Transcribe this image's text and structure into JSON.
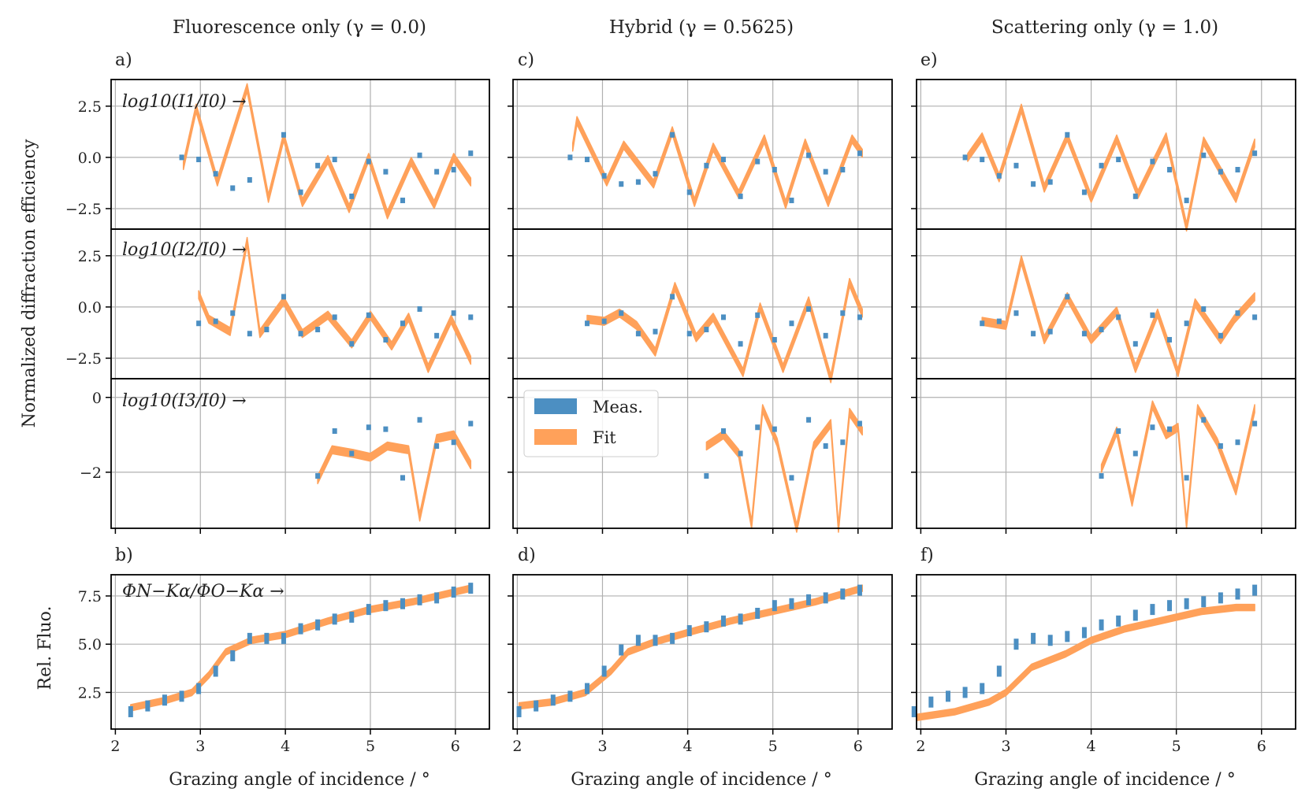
{
  "colors": {
    "meas": "#4c8fc2",
    "fit": "#ffa15a",
    "grid": "#b0b0b0",
    "axis": "#000000"
  },
  "column_titles": [
    "Fluorescence only (γ = 0.0)",
    "Hybrid (γ = 0.5625)",
    "Scattering only (γ = 1.0)"
  ],
  "panel_letters": [
    "a)",
    "b)",
    "c)",
    "d)",
    "e)",
    "f)"
  ],
  "y_label_top": "Normalized diffraction efficiency",
  "y_label_bottom": "Rel. Fluo.",
  "x_label": "Grazing angle of incidence / °",
  "row_annotations": [
    "log10(I1/I0) →",
    "log10(I2/I0) →",
    "log10(I3/I0) →",
    "ΦN−Kα/ΦO−Kα →"
  ],
  "legend": {
    "meas": "Meas.",
    "fit": "Fit"
  },
  "chart_data": {
    "type": "scatter",
    "xlim": [
      1.95,
      6.4
    ],
    "xticks": [
      2,
      3,
      4,
      5,
      6
    ],
    "rows": [
      {
        "ylim": [
          -3.5,
          3.8
        ],
        "yticks": [
          2.5,
          0.0,
          -2.5
        ],
        "yticklabels": [
          "2.5",
          "0.0",
          "−2.5"
        ]
      },
      {
        "ylim": [
          -3.5,
          3.8
        ],
        "yticks": [
          2.5,
          0.0,
          -2.5
        ],
        "yticklabels": [
          "2.5",
          "0.0",
          "−2.5"
        ]
      },
      {
        "ylim": [
          -3.5,
          0.5
        ],
        "yticks": [
          0,
          -2
        ],
        "yticklabels": [
          "0",
          "−2"
        ]
      },
      {
        "ylim": [
          0.6,
          8.6
        ],
        "yticks": [
          2.5,
          5.0,
          7.5
        ],
        "yticklabels": [
          "2.5",
          "5.0",
          "7.5"
        ]
      }
    ],
    "columns": [
      {
        "name": "Fluorescence only",
        "gamma": 0.0,
        "rows": [
          {
            "fit_x": [
              2.8,
              2.95,
              3.2,
              3.55,
              3.8,
              3.98,
              4.2,
              4.5,
              4.75,
              4.98,
              5.2,
              5.48,
              5.75,
              5.98,
              6.18
            ],
            "fit_y": [
              -0.4,
              2.4,
              -1.2,
              3.4,
              -2.0,
              1.0,
              -2.2,
              -0.1,
              -2.5,
              0.0,
              -2.8,
              -0.2,
              -2.3,
              0.0,
              -1.2
            ],
            "meas_x": [
              2.78,
              2.98,
              3.18,
              3.38,
              3.58,
              3.98,
              4.18,
              4.38,
              4.58,
              4.78,
              4.98,
              5.18,
              5.38,
              5.58,
              5.78,
              5.98,
              6.18
            ],
            "meas_y": [
              0.0,
              -0.1,
              -0.8,
              -1.5,
              -1.1,
              1.1,
              -1.7,
              -0.4,
              -0.1,
              -1.9,
              -0.2,
              -0.7,
              -2.1,
              0.1,
              -0.7,
              -0.6,
              0.2
            ]
          },
          {
            "fit_x": [
              2.98,
              3.1,
              3.35,
              3.55,
              3.7,
              3.98,
              4.2,
              4.5,
              4.78,
              5.0,
              5.25,
              5.45,
              5.68,
              5.95,
              6.18
            ],
            "fit_y": [
              0.6,
              -0.6,
              -1.2,
              3.2,
              -1.3,
              0.3,
              -1.3,
              -0.4,
              -1.8,
              -0.4,
              -1.9,
              -0.5,
              -3.0,
              -0.6,
              -2.6
            ],
            "meas_x": [
              2.98,
              3.18,
              3.38,
              3.58,
              3.78,
              3.98,
              4.18,
              4.38,
              4.58,
              4.78,
              4.98,
              5.18,
              5.38,
              5.58,
              5.78,
              5.98,
              6.18
            ],
            "meas_y": [
              -0.8,
              -0.7,
              -0.3,
              -1.3,
              -1.1,
              0.5,
              -1.3,
              -1.1,
              -0.5,
              -1.8,
              -0.4,
              -1.6,
              -0.8,
              -0.1,
              -1.4,
              -0.3,
              -0.5
            ]
          },
          {
            "fit_x": [
              4.38,
              4.55,
              4.8,
              5.0,
              5.2,
              5.45,
              5.58,
              5.78,
              5.98,
              6.18
            ],
            "fit_y": [
              -2.2,
              -1.4,
              -1.5,
              -1.6,
              -1.3,
              -1.4,
              -3.2,
              -1.1,
              -1.0,
              -1.8
            ],
            "meas_x": [
              4.38,
              4.58,
              4.78,
              4.98,
              5.18,
              5.38,
              5.58,
              5.78,
              5.98,
              6.18
            ],
            "meas_y": [
              -2.1,
              -0.9,
              -1.5,
              -0.8,
              -0.85,
              -2.15,
              -0.6,
              -1.3,
              -1.2,
              -0.7
            ]
          },
          {
            "fit_x": [
              2.18,
              2.6,
              2.9,
              3.1,
              3.3,
              3.6,
              4.0,
              4.5,
              5.0,
              5.5,
              6.18
            ],
            "fit_y": [
              1.7,
              2.1,
              2.5,
              3.4,
              4.6,
              5.2,
              5.5,
              6.2,
              6.8,
              7.2,
              7.9
            ],
            "meas_x": [
              2.18,
              2.38,
              2.58,
              2.78,
              2.98,
              3.18,
              3.38,
              3.58,
              3.78,
              3.98,
              4.18,
              4.38,
              4.58,
              4.78,
              4.98,
              5.18,
              5.38,
              5.58,
              5.78,
              5.98,
              6.18
            ],
            "meas_y": [
              1.5,
              1.8,
              2.1,
              2.3,
              2.7,
              3.6,
              4.4,
              5.3,
              5.3,
              5.3,
              5.8,
              6.0,
              6.3,
              6.4,
              6.8,
              7.0,
              7.1,
              7.3,
              7.4,
              7.7,
              7.9
            ]
          }
        ]
      },
      {
        "name": "Hybrid",
        "gamma": 0.5625,
        "rows": [
          {
            "fit_x": [
              2.65,
              2.7,
              3.05,
              3.25,
              3.6,
              3.82,
              4.08,
              4.3,
              4.6,
              4.9,
              5.15,
              5.38,
              5.65,
              5.93,
              6.05
            ],
            "fit_y": [
              0.5,
              1.8,
              -1.2,
              0.6,
              -1.3,
              1.3,
              -2.2,
              0.5,
              -1.8,
              0.9,
              -2.3,
              0.7,
              -2.2,
              0.9,
              0.2
            ],
            "meas_x": [
              2.62,
              2.82,
              3.02,
              3.22,
              3.42,
              3.62,
              3.82,
              4.02,
              4.22,
              4.42,
              4.62,
              4.82,
              5.02,
              5.22,
              5.42,
              5.62,
              5.82,
              6.02
            ],
            "meas_y": [
              0.0,
              -0.1,
              -0.9,
              -1.3,
              -1.2,
              -0.8,
              1.1,
              -1.7,
              -0.4,
              -0.1,
              -1.9,
              -0.2,
              -0.6,
              -2.1,
              0.1,
              -0.7,
              -0.6,
              0.2
            ]
          },
          {
            "fit_x": [
              2.82,
              3.02,
              3.2,
              3.4,
              3.62,
              3.85,
              4.1,
              4.3,
              4.65,
              4.85,
              5.12,
              5.42,
              5.68,
              5.9,
              6.05
            ],
            "fit_y": [
              -0.6,
              -0.7,
              -0.3,
              -0.9,
              -2.2,
              1.0,
              -1.5,
              -0.5,
              -3.2,
              0.0,
              -3.0,
              0.3,
              -3.5,
              1.2,
              -0.3
            ],
            "meas_x": [
              2.82,
              3.02,
              3.22,
              3.42,
              3.62,
              3.82,
              4.02,
              4.22,
              4.42,
              4.62,
              4.82,
              5.02,
              5.22,
              5.42,
              5.62,
              5.82,
              6.02
            ],
            "meas_y": [
              -0.8,
              -0.7,
              -0.3,
              -1.3,
              -1.2,
              0.5,
              -1.3,
              -1.1,
              -0.5,
              -1.8,
              -0.4,
              -1.6,
              -0.8,
              -0.1,
              -1.4,
              -0.3,
              -0.5
            ]
          },
          {
            "fit_x": [
              4.22,
              4.42,
              4.6,
              4.75,
              4.88,
              5.05,
              5.28,
              5.48,
              5.68,
              5.77,
              5.9,
              6.05
            ],
            "fit_y": [
              -1.3,
              -1.0,
              -1.5,
              -3.4,
              -0.3,
              -1.2,
              -3.5,
              -1.3,
              -0.7,
              -3.5,
              -0.4,
              -0.9
            ],
            "meas_x": [
              4.22,
              4.42,
              4.62,
              4.82,
              5.02,
              5.22,
              5.42,
              5.62,
              5.82,
              6.02
            ],
            "meas_y": [
              -2.1,
              -0.9,
              -1.5,
              -0.8,
              -0.85,
              -2.15,
              -0.6,
              -1.3,
              -1.2,
              -0.7
            ]
          },
          {
            "fit_x": [
              2.02,
              2.4,
              2.8,
              3.1,
              3.3,
              3.6,
              4.0,
              4.5,
              5.0,
              5.5,
              6.05
            ],
            "fit_y": [
              1.8,
              2.0,
              2.5,
              3.6,
              4.6,
              5.1,
              5.6,
              6.2,
              6.7,
              7.2,
              7.9
            ],
            "meas_x": [
              2.02,
              2.22,
              2.42,
              2.62,
              2.82,
              3.02,
              3.22,
              3.42,
              3.62,
              3.82,
              4.02,
              4.22,
              4.42,
              4.62,
              4.82,
              5.02,
              5.22,
              5.42,
              5.62,
              5.82,
              6.02
            ],
            "meas_y": [
              1.5,
              1.8,
              2.1,
              2.3,
              2.7,
              3.6,
              4.7,
              5.2,
              5.2,
              5.3,
              5.7,
              5.9,
              6.2,
              6.3,
              6.6,
              7.0,
              7.1,
              7.3,
              7.4,
              7.6,
              7.8
            ]
          }
        ]
      },
      {
        "name": "Scattering only",
        "gamma": 1.0,
        "rows": [
          {
            "fit_x": [
              2.55,
              2.72,
              2.92,
              3.18,
              3.45,
              3.72,
              4.0,
              4.3,
              4.55,
              4.88,
              5.12,
              5.32,
              5.7,
              5.92
            ],
            "fit_y": [
              0.0,
              1.0,
              -1.0,
              2.4,
              -1.5,
              1.0,
              -2.0,
              0.9,
              -1.8,
              1.0,
              -3.4,
              0.8,
              -2.0,
              0.7
            ],
            "meas_x": [
              2.52,
              2.72,
              2.92,
              3.12,
              3.32,
              3.52,
              3.72,
              3.92,
              4.12,
              4.32,
              4.52,
              4.72,
              4.92,
              5.12,
              5.32,
              5.52,
              5.72,
              5.92
            ],
            "meas_y": [
              0.0,
              -0.1,
              -0.9,
              -0.4,
              -1.3,
              -1.2,
              1.1,
              -1.7,
              -0.4,
              -0.1,
              -1.9,
              -0.2,
              -0.6,
              -2.1,
              0.1,
              -0.7,
              -0.6,
              0.2
            ]
          },
          {
            "fit_x": [
              2.72,
              3.0,
              3.18,
              3.45,
              3.72,
              4.0,
              4.3,
              4.52,
              4.78,
              5.02,
              5.22,
              5.52,
              5.68,
              5.92
            ],
            "fit_y": [
              -0.7,
              -0.9,
              2.3,
              -1.6,
              0.5,
              -1.6,
              -0.2,
              -3.0,
              -0.3,
              -3.2,
              0.2,
              -1.6,
              -0.6,
              0.5
            ],
            "meas_x": [
              2.72,
              2.92,
              3.12,
              3.32,
              3.52,
              3.72,
              3.92,
              4.12,
              4.32,
              4.52,
              4.72,
              4.92,
              5.12,
              5.32,
              5.52,
              5.72,
              5.92
            ],
            "meas_y": [
              -0.8,
              -0.7,
              -0.3,
              -1.3,
              -1.2,
              0.5,
              -1.3,
              -1.1,
              -0.5,
              -1.8,
              -0.4,
              -1.6,
              -0.8,
              -0.1,
              -1.4,
              -0.3,
              -0.5
            ]
          },
          {
            "fit_x": [
              4.12,
              4.3,
              4.48,
              4.72,
              4.88,
              5.02,
              5.12,
              5.25,
              5.48,
              5.7,
              5.92
            ],
            "fit_y": [
              -1.9,
              -0.9,
              -2.8,
              -0.2,
              -1.0,
              -0.8,
              -3.4,
              -0.3,
              -1.2,
              -2.5,
              -0.3
            ],
            "meas_x": [
              4.12,
              4.32,
              4.52,
              4.72,
              4.92,
              5.12,
              5.32,
              5.52,
              5.72,
              5.92
            ],
            "meas_y": [
              -2.1,
              -0.9,
              -1.5,
              -0.8,
              -0.85,
              -2.15,
              -0.6,
              -1.3,
              -1.2,
              -0.7
            ]
          },
          {
            "fit_x": [
              1.95,
              2.4,
              2.8,
              3.0,
              3.3,
              3.7,
              4.0,
              4.4,
              4.9,
              5.3,
              5.7,
              5.92
            ],
            "fit_y": [
              1.2,
              1.5,
              2.0,
              2.5,
              3.8,
              4.5,
              5.2,
              5.8,
              6.3,
              6.7,
              6.9,
              6.9
            ],
            "meas_x": [
              1.92,
              2.12,
              2.32,
              2.52,
              2.72,
              2.92,
              3.12,
              3.32,
              3.52,
              3.72,
              3.92,
              4.12,
              4.32,
              4.52,
              4.72,
              4.92,
              5.12,
              5.32,
              5.52,
              5.72,
              5.92
            ],
            "meas_y": [
              1.5,
              2.0,
              2.3,
              2.5,
              2.7,
              3.6,
              5.0,
              5.3,
              5.2,
              5.4,
              5.6,
              6.0,
              6.2,
              6.5,
              6.8,
              7.0,
              7.1,
              7.2,
              7.4,
              7.6,
              7.8
            ]
          }
        ]
      }
    ]
  }
}
